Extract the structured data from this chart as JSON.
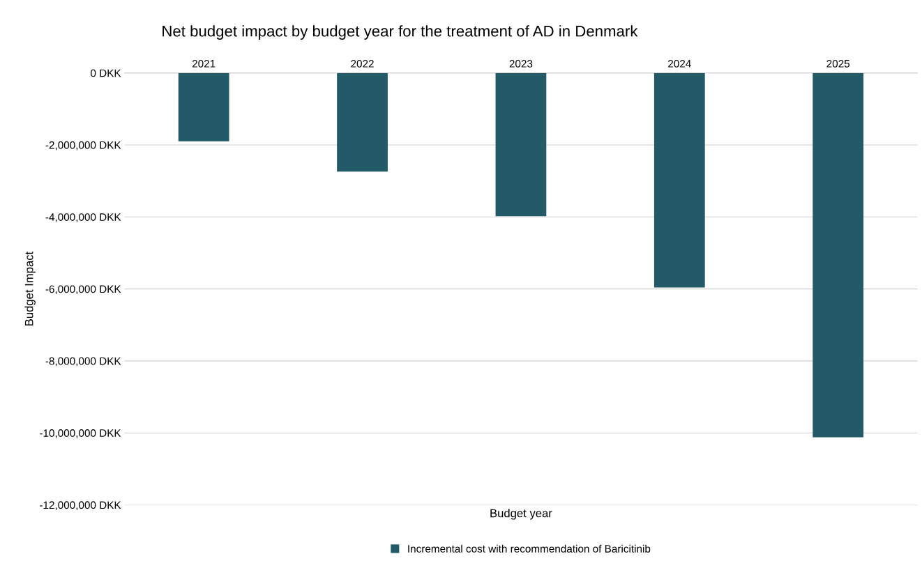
{
  "chart_data": {
    "type": "bar",
    "title": "Net budget impact by budget year for the treatment of AD in Denmark",
    "xlabel": "Budget year",
    "ylabel": "Budget Impact",
    "categories": [
      "2021",
      "2022",
      "2023",
      "2024",
      "2025"
    ],
    "series": [
      {
        "name": "Incremental cost with recommendation of Baricitinib",
        "color": "#225a67",
        "values": [
          -1900000,
          -2740000,
          -3980000,
          -5960000,
          -10120000
        ]
      }
    ],
    "ylim": [
      -12000000,
      0
    ],
    "yticks": [
      {
        "value": -12000000,
        "label": "-12,000,000 DKK"
      },
      {
        "value": -10000000,
        "label": "-10,000,000 DKK"
      },
      {
        "value": -8000000,
        "label": "-8,000,000 DKK"
      },
      {
        "value": -6000000,
        "label": "-6,000,000 DKK"
      },
      {
        "value": -4000000,
        "label": "-4,000,000 DKK"
      },
      {
        "value": -2000000,
        "label": "-2,000,000 DKK"
      },
      {
        "value": 0,
        "label": "0 DKK"
      }
    ],
    "grid": "y",
    "legend": "bottom"
  }
}
